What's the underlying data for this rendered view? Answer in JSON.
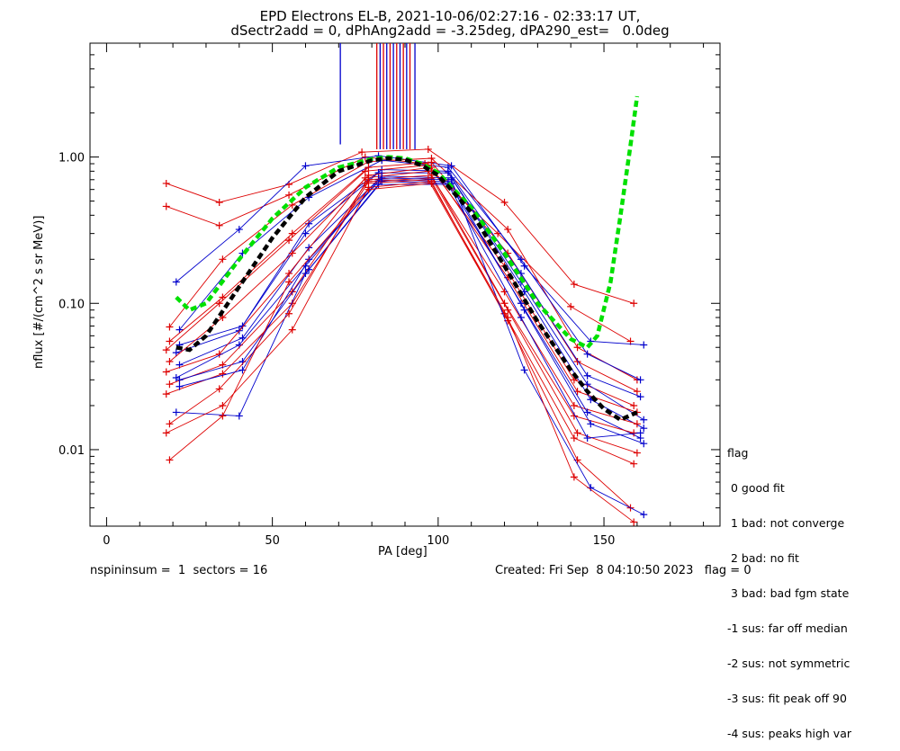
{
  "title_line1": "EPD Electrons EL-B, 2021-10-06/02:27:16 - 02:33:17 UT,",
  "title_line2": "dSectr2add = 0, dPhAng2add = -3.25deg, dPA290_est=   0.0deg",
  "footer_left": "nspininsum =  1  sectors = 16",
  "footer_right": "Created: Fri Sep  8 04:10:50 2023   flag = 0",
  "legend": {
    "title": "flag",
    "items": [
      " 0 good fit",
      " 1 bad: not converge",
      " 2 bad: no fit",
      " 3 bad: bad fgm state",
      "-1 sus: far off median",
      "-2 sus: not symmetric",
      "-3 sus: fit peak off 90",
      "-4 sus: peaks high var"
    ]
  },
  "colors": {
    "red": "#dd0000",
    "blue": "#0000cc",
    "green": "#00e000",
    "black": "#000000"
  },
  "chart_data": {
    "type": "line",
    "xlabel": "PA [deg]",
    "ylabel": "nflux [#/(cm^2 s sr MeV)]",
    "xlim": [
      -5,
      185
    ],
    "ylim": [
      0.003,
      6
    ],
    "yscale": "log",
    "x_ticks": [
      0,
      50,
      100,
      150
    ],
    "x_tick_labels": [
      "0",
      "50",
      "100",
      "150"
    ],
    "y_ticks": [
      0.01,
      0.1,
      1.0
    ],
    "y_tick_labels": [
      "0.01",
      "0.10",
      "1.00"
    ],
    "grid": false,
    "vertical_markers": [
      {
        "x": 70.5,
        "color": "blue"
      },
      {
        "x": 81.5,
        "color": "red"
      },
      {
        "x": 82.5,
        "color": "blue"
      },
      {
        "x": 83.5,
        "color": "red"
      },
      {
        "x": 84.5,
        "color": "blue"
      },
      {
        "x": 85.5,
        "color": "red"
      },
      {
        "x": 86.5,
        "color": "blue"
      },
      {
        "x": 87.5,
        "color": "red"
      },
      {
        "x": 88.5,
        "color": "blue"
      },
      {
        "x": 89.5,
        "color": "red"
      },
      {
        "x": 90.5,
        "color": "blue"
      },
      {
        "x": 91.5,
        "color": "red"
      },
      {
        "x": 93.0,
        "color": "blue"
      }
    ],
    "series": [
      {
        "color": "red",
        "x": [
          18,
          34,
          55,
          77,
          97,
          120,
          141,
          159
        ],
        "y": [
          0.66,
          0.49,
          0.65,
          1.08,
          1.13,
          0.49,
          0.135,
          0.1
        ]
      },
      {
        "color": "red",
        "x": [
          18,
          34,
          55,
          78,
          96,
          118,
          140,
          158
        ],
        "y": [
          0.46,
          0.34,
          0.55,
          1.0,
          0.9,
          0.3,
          0.095,
          0.055
        ]
      },
      {
        "color": "blue",
        "x": [
          21,
          40,
          60,
          82,
          104,
          126,
          146,
          162
        ],
        "y": [
          0.14,
          0.32,
          0.87,
          1.02,
          0.87,
          0.18,
          0.055,
          0.052
        ]
      },
      {
        "color": "red",
        "x": [
          19,
          35,
          56,
          79,
          98,
          121,
          142,
          160
        ],
        "y": [
          0.069,
          0.2,
          0.47,
          0.93,
          0.98,
          0.32,
          0.05,
          0.03
        ]
      },
      {
        "color": "blue",
        "x": [
          22,
          41,
          61,
          83,
          103,
          125,
          145,
          161
        ],
        "y": [
          0.066,
          0.22,
          0.53,
          0.95,
          0.85,
          0.2,
          0.045,
          0.03
        ]
      },
      {
        "color": "red",
        "x": [
          19,
          35,
          56,
          79,
          98,
          121,
          142,
          160
        ],
        "y": [
          0.055,
          0.11,
          0.3,
          0.85,
          0.92,
          0.22,
          0.04,
          0.025
        ]
      },
      {
        "color": "blue",
        "x": [
          22,
          41,
          61,
          83,
          103,
          125,
          145,
          161
        ],
        "y": [
          0.052,
          0.07,
          0.35,
          0.82,
          0.8,
          0.16,
          0.032,
          0.023
        ]
      },
      {
        "color": "red",
        "x": [
          18,
          34,
          55,
          78,
          97,
          120,
          141,
          159
        ],
        "y": [
          0.048,
          0.1,
          0.27,
          0.8,
          0.88,
          0.18,
          0.03,
          0.02
        ]
      },
      {
        "color": "blue",
        "x": [
          21,
          40,
          60,
          82,
          103,
          125,
          145,
          162
        ],
        "y": [
          0.046,
          0.065,
          0.3,
          0.78,
          0.78,
          0.14,
          0.028,
          0.016
        ]
      },
      {
        "color": "red",
        "x": [
          19,
          35,
          56,
          79,
          98,
          121,
          142,
          160
        ],
        "y": [
          0.04,
          0.08,
          0.22,
          0.75,
          0.85,
          0.15,
          0.025,
          0.018
        ]
      },
      {
        "color": "blue",
        "x": [
          22,
          41,
          61,
          83,
          104,
          126,
          146,
          162
        ],
        "y": [
          0.038,
          0.058,
          0.24,
          0.74,
          0.72,
          0.12,
          0.022,
          0.014
        ]
      },
      {
        "color": "red",
        "x": [
          18,
          34,
          55,
          78,
          97,
          120,
          141,
          160
        ],
        "y": [
          0.034,
          0.045,
          0.16,
          0.72,
          0.8,
          0.12,
          0.02,
          0.015
        ]
      },
      {
        "color": "blue",
        "x": [
          21,
          40,
          60,
          82,
          103,
          125,
          145,
          161
        ],
        "y": [
          0.031,
          0.052,
          0.18,
          0.7,
          0.68,
          0.1,
          0.018,
          0.012
        ]
      },
      {
        "color": "red",
        "x": [
          19,
          35,
          56,
          79,
          98,
          120,
          141,
          159
        ],
        "y": [
          0.028,
          0.038,
          0.12,
          0.7,
          0.75,
          0.1,
          0.017,
          0.013
        ]
      },
      {
        "color": "blue",
        "x": [
          22,
          41,
          61,
          83,
          104,
          126,
          146,
          162
        ],
        "y": [
          0.03,
          0.04,
          0.17,
          0.68,
          0.66,
          0.09,
          0.015,
          0.011
        ]
      },
      {
        "color": "red",
        "x": [
          18,
          35,
          56,
          79,
          98,
          121,
          142,
          160
        ],
        "y": [
          0.024,
          0.033,
          0.1,
          0.68,
          0.72,
          0.09,
          0.013,
          0.0095
        ]
      },
      {
        "color": "blue",
        "x": [
          21,
          40,
          60,
          82,
          103,
          125,
          145,
          161
        ],
        "y": [
          0.018,
          0.017,
          0.16,
          0.65,
          0.65,
          0.08,
          0.012,
          0.013
        ]
      },
      {
        "color": "red",
        "x": [
          19,
          34,
          55,
          78,
          97,
          120,
          141,
          159
        ],
        "y": [
          0.015,
          0.026,
          0.085,
          0.66,
          0.7,
          0.085,
          0.012,
          0.008
        ]
      },
      {
        "color": "red",
        "x": [
          18,
          35,
          56,
          79,
          98,
          121,
          142,
          158
        ],
        "y": [
          0.013,
          0.02,
          0.066,
          0.62,
          0.68,
          0.076,
          0.0085,
          0.004
        ]
      },
      {
        "color": "blue",
        "x": [
          22,
          41,
          61,
          83,
          104,
          126,
          146,
          162
        ],
        "y": [
          0.027,
          0.035,
          0.2,
          0.72,
          0.7,
          0.035,
          0.0055,
          0.0036
        ]
      },
      {
        "color": "red",
        "x": [
          19,
          35,
          55,
          79,
          98,
          121,
          141,
          159
        ],
        "y": [
          0.0085,
          0.017,
          0.14,
          0.6,
          0.66,
          0.08,
          0.0065,
          0.0032
        ]
      }
    ],
    "fit_curves": [
      {
        "color": "green",
        "style": "dashed",
        "x": [
          21,
          25,
          30,
          40,
          50,
          60,
          70,
          80,
          85,
          90,
          95,
          100,
          110,
          120,
          130,
          140,
          145,
          148,
          152,
          155,
          158,
          160
        ],
        "y": [
          0.11,
          0.09,
          0.1,
          0.2,
          0.38,
          0.62,
          0.85,
          0.97,
          1.0,
          0.98,
          0.9,
          0.78,
          0.45,
          0.22,
          0.1,
          0.057,
          0.05,
          0.06,
          0.14,
          0.4,
          1.2,
          2.6
        ]
      },
      {
        "color": "black",
        "style": "dashed",
        "x": [
          21,
          25,
          30,
          40,
          50,
          60,
          70,
          80,
          85,
          90,
          95,
          100,
          110,
          120,
          130,
          140,
          145,
          150,
          155,
          160
        ],
        "y": [
          0.05,
          0.048,
          0.06,
          0.13,
          0.28,
          0.53,
          0.8,
          0.95,
          0.98,
          0.96,
          0.88,
          0.75,
          0.42,
          0.18,
          0.075,
          0.035,
          0.025,
          0.019,
          0.016,
          0.018
        ]
      }
    ]
  }
}
